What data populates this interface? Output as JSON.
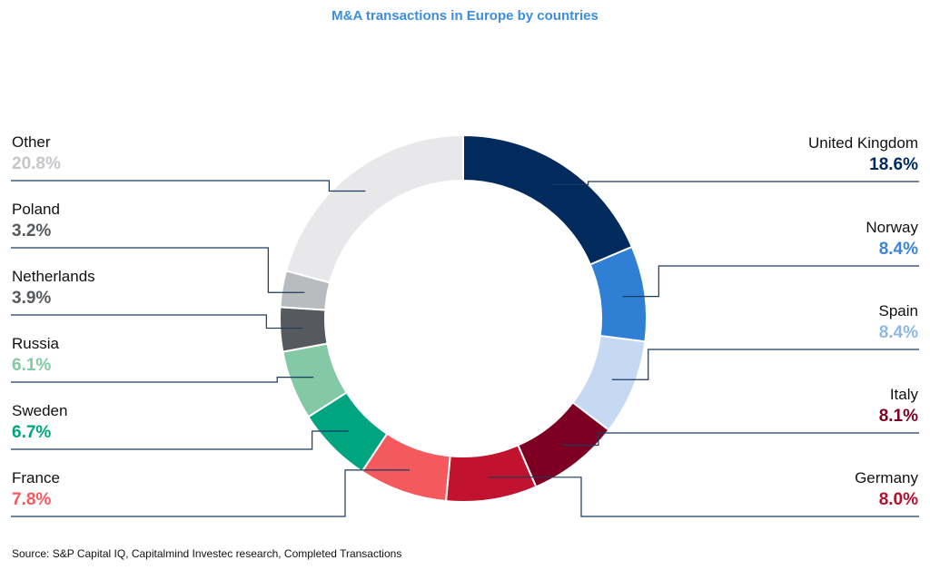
{
  "title": "M&A transactions in Europe by countries",
  "source": "Source: S&P Capital IQ, Capitalmind Investec research, Completed Transactions",
  "colors": {
    "title": "#3c8ddf",
    "leader_line": "#1a3a60"
  },
  "chart_data": {
    "type": "pie",
    "title": "M&A transactions in Europe by countries",
    "unit": "%",
    "slices": [
      {
        "label": "United Kingdom",
        "value": 18.6,
        "value_text": "18.6%",
        "color": "#002b5c",
        "label_color": "#002b5c",
        "side": "right"
      },
      {
        "label": "Norway",
        "value": 8.4,
        "value_text": "8.4%",
        "color": "#2f7fd4",
        "label_color": "#3a85d8",
        "side": "right"
      },
      {
        "label": "Spain",
        "value": 8.4,
        "value_text": "8.4%",
        "color": "#c5daf2",
        "label_color": "#8fb8e6",
        "side": "right"
      },
      {
        "label": "Italy",
        "value": 8.1,
        "value_text": "8.1%",
        "color": "#7d0022",
        "label_color": "#7d0022",
        "side": "right"
      },
      {
        "label": "Germany",
        "value": 8.0,
        "value_text": "8.0%",
        "color": "#c1122f",
        "label_color": "#b3122d",
        "side": "right"
      },
      {
        "label": "France",
        "value": 7.8,
        "value_text": "7.8%",
        "color": "#f45a5d",
        "label_color": "#f45a5d",
        "side": "left"
      },
      {
        "label": "Sweden",
        "value": 6.7,
        "value_text": "6.7%",
        "color": "#00a57f",
        "label_color": "#00a57f",
        "side": "left"
      },
      {
        "label": "Russia",
        "value": 6.1,
        "value_text": "6.1%",
        "color": "#84c9a5",
        "label_color": "#84c9a5",
        "side": "left"
      },
      {
        "label": "Netherlands",
        "value": 3.9,
        "value_text": "3.9%",
        "color": "#56595d",
        "label_color": "#56595d",
        "side": "left"
      },
      {
        "label": "Poland",
        "value": 3.2,
        "value_text": "3.2%",
        "color": "#b9bcbf",
        "label_color": "#56595d",
        "side": "left"
      },
      {
        "label": "Other",
        "value": 20.8,
        "value_text": "20.8%",
        "color": "#e8e8ea",
        "label_color": "#c4c6c9",
        "side": "left"
      }
    ],
    "legend": "none",
    "start_angle": "12 o'clock, clockwise"
  }
}
